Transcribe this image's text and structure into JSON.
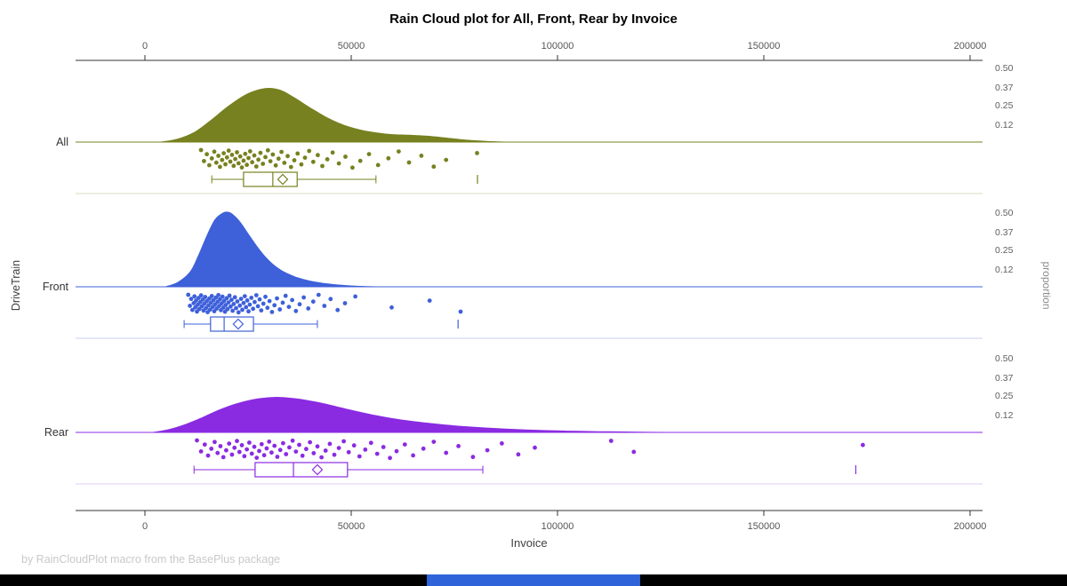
{
  "chart_data": {
    "type": "raincloud",
    "title": "Rain Cloud plot for All, Front, Rear by Invoice",
    "footnote": "by RainCloudPlot macro from the BasePlus package",
    "xlabel": "Invoice",
    "ylabel_left": "DriveTrain",
    "ylabel_right": "proportion",
    "xlim": [
      0,
      200000
    ],
    "x_ticks": [
      0,
      50000,
      100000,
      150000,
      200000
    ],
    "x_tick_labels": [
      "0",
      "50000",
      "100000",
      "150000",
      "200000"
    ],
    "proportion_ticks": [
      0.5,
      0.37,
      0.25,
      0.12
    ],
    "proportion_tick_labels": [
      "0.50",
      "0.37",
      "0.25",
      "0.12"
    ],
    "legend": false,
    "grid": false,
    "groups": [
      {
        "name": "All",
        "color": "#77811F",
        "light_color": "#D9DCBC",
        "density": [
          [
            4000,
            0
          ],
          [
            8000,
            0.02
          ],
          [
            12000,
            0.065
          ],
          [
            16000,
            0.145
          ],
          [
            20000,
            0.235
          ],
          [
            24000,
            0.31
          ],
          [
            27000,
            0.345
          ],
          [
            30000,
            0.36
          ],
          [
            33000,
            0.345
          ],
          [
            36000,
            0.3
          ],
          [
            40000,
            0.23
          ],
          [
            44000,
            0.165
          ],
          [
            48000,
            0.115
          ],
          [
            52000,
            0.082
          ],
          [
            56000,
            0.062
          ],
          [
            60000,
            0.05
          ],
          [
            64000,
            0.046
          ],
          [
            68000,
            0.04
          ],
          [
            72000,
            0.03
          ],
          [
            76000,
            0.018
          ],
          [
            80000,
            0.009
          ],
          [
            84000,
            0.003
          ],
          [
            87000,
            0
          ]
        ],
        "points": [
          13600,
          14300,
          15000,
          15600,
          16200,
          16800,
          17300,
          17800,
          18200,
          18700,
          19100,
          19500,
          19900,
          20300,
          20700,
          21100,
          21500,
          21900,
          22300,
          22700,
          23100,
          23500,
          23900,
          24300,
          24700,
          25100,
          25500,
          26000,
          26500,
          27000,
          27500,
          28000,
          28600,
          29200,
          29800,
          30400,
          31000,
          31700,
          32400,
          33100,
          33800,
          34600,
          35400,
          36200,
          37000,
          37900,
          38800,
          39800,
          40800,
          41900,
          43000,
          44200,
          45500,
          47000,
          48600,
          50300,
          52200,
          54300,
          56500,
          59000,
          61500,
          64000,
          67000,
          70000,
          73000,
          80500
        ],
        "box": {
          "whisker_low": 16200,
          "q1": 23900,
          "median": 31000,
          "mean": 33400,
          "q3": 36900,
          "whisker_high": 56000,
          "outliers": [
            80600
          ]
        }
      },
      {
        "name": "Front",
        "color": "#3E60D9",
        "light_color": "#C7D2F1",
        "density": [
          [
            5000,
            0
          ],
          [
            8000,
            0.03
          ],
          [
            11000,
            0.1
          ],
          [
            13000,
            0.21
          ],
          [
            15000,
            0.34
          ],
          [
            17000,
            0.45
          ],
          [
            19000,
            0.495
          ],
          [
            20000,
            0.5
          ],
          [
            21000,
            0.49
          ],
          [
            23000,
            0.435
          ],
          [
            25000,
            0.355
          ],
          [
            27000,
            0.275
          ],
          [
            29000,
            0.205
          ],
          [
            31000,
            0.15
          ],
          [
            33000,
            0.11
          ],
          [
            35000,
            0.082
          ],
          [
            37000,
            0.06
          ],
          [
            40000,
            0.038
          ],
          [
            43000,
            0.024
          ],
          [
            46000,
            0.014
          ],
          [
            49000,
            0.007
          ],
          [
            52000,
            0.003
          ],
          [
            56000,
            0
          ]
        ],
        "points": [
          10500,
          10900,
          11200,
          11500,
          11800,
          12000,
          12200,
          12400,
          12600,
          12800,
          13000,
          13200,
          13400,
          13600,
          13800,
          14000,
          14200,
          14400,
          14600,
          14800,
          15000,
          15200,
          15400,
          15600,
          15800,
          16000,
          16200,
          16400,
          16600,
          16800,
          17000,
          17200,
          17400,
          17600,
          17800,
          18000,
          18200,
          18400,
          18600,
          18800,
          19000,
          19200,
          19400,
          19600,
          19800,
          20000,
          20250,
          20500,
          20750,
          21000,
          21250,
          21500,
          21800,
          22100,
          22400,
          22700,
          23000,
          23300,
          23600,
          23900,
          24200,
          24500,
          24800,
          25100,
          25400,
          25800,
          26200,
          26600,
          27000,
          27400,
          27800,
          28200,
          28700,
          29200,
          29700,
          30200,
          30800,
          31400,
          32000,
          32700,
          33400,
          34100,
          34900,
          35700,
          36600,
          37500,
          38500,
          39600,
          40800,
          42100,
          43500,
          45000,
          46700,
          48500,
          51000,
          59800,
          69000,
          76500
        ],
        "box": {
          "whisker_low": 9500,
          "q1": 15900,
          "median": 19200,
          "mean": 22600,
          "q3": 26300,
          "whisker_high": 41800,
          "outliers": [
            75900
          ]
        }
      },
      {
        "name": "Rear",
        "color": "#8A2BE2",
        "light_color": "#E0CBF4",
        "density": [
          [
            2000,
            0
          ],
          [
            6000,
            0.02
          ],
          [
            10000,
            0.055
          ],
          [
            14000,
            0.1
          ],
          [
            18000,
            0.15
          ],
          [
            22000,
            0.19
          ],
          [
            26000,
            0.218
          ],
          [
            29000,
            0.23
          ],
          [
            32000,
            0.235
          ],
          [
            35000,
            0.23
          ],
          [
            38000,
            0.22
          ],
          [
            42000,
            0.2
          ],
          [
            46000,
            0.175
          ],
          [
            50000,
            0.148
          ],
          [
            55000,
            0.118
          ],
          [
            60000,
            0.092
          ],
          [
            65000,
            0.073
          ],
          [
            70000,
            0.057
          ],
          [
            75000,
            0.044
          ],
          [
            80000,
            0.034
          ],
          [
            85000,
            0.026
          ],
          [
            90000,
            0.019
          ],
          [
            95000,
            0.014
          ],
          [
            100000,
            0.01
          ],
          [
            105000,
            0.007
          ],
          [
            110000,
            0.005
          ],
          [
            115000,
            0.0035
          ],
          [
            120000,
            0.002
          ],
          [
            126000,
            0
          ]
        ],
        "points": [
          12600,
          13600,
          14500,
          15300,
          16100,
          16900,
          17600,
          18300,
          19000,
          19700,
          20400,
          21100,
          21700,
          22300,
          22900,
          23500,
          24100,
          24700,
          25300,
          25900,
          26500,
          27100,
          27700,
          28300,
          28900,
          29500,
          30100,
          30700,
          31400,
          32100,
          32800,
          33500,
          34200,
          35000,
          35800,
          36600,
          37400,
          38200,
          39100,
          40000,
          40900,
          41800,
          42800,
          43800,
          44800,
          45900,
          47000,
          48200,
          49400,
          50700,
          52000,
          53400,
          54800,
          56300,
          57800,
          59400,
          61000,
          63000,
          65000,
          67500,
          70000,
          73000,
          76000,
          79500,
          83000,
          86500,
          90500,
          94500,
          113000,
          118500,
          174000
        ],
        "box": {
          "whisker_low": 11900,
          "q1": 26700,
          "median": 36000,
          "mean": 41800,
          "q3": 49100,
          "whisker_high": 81900,
          "outliers": [
            172300
          ]
        }
      }
    ]
  },
  "ui": {
    "taskbar_color": "#000000",
    "taskbar_segment_color": "#2E63DA"
  }
}
